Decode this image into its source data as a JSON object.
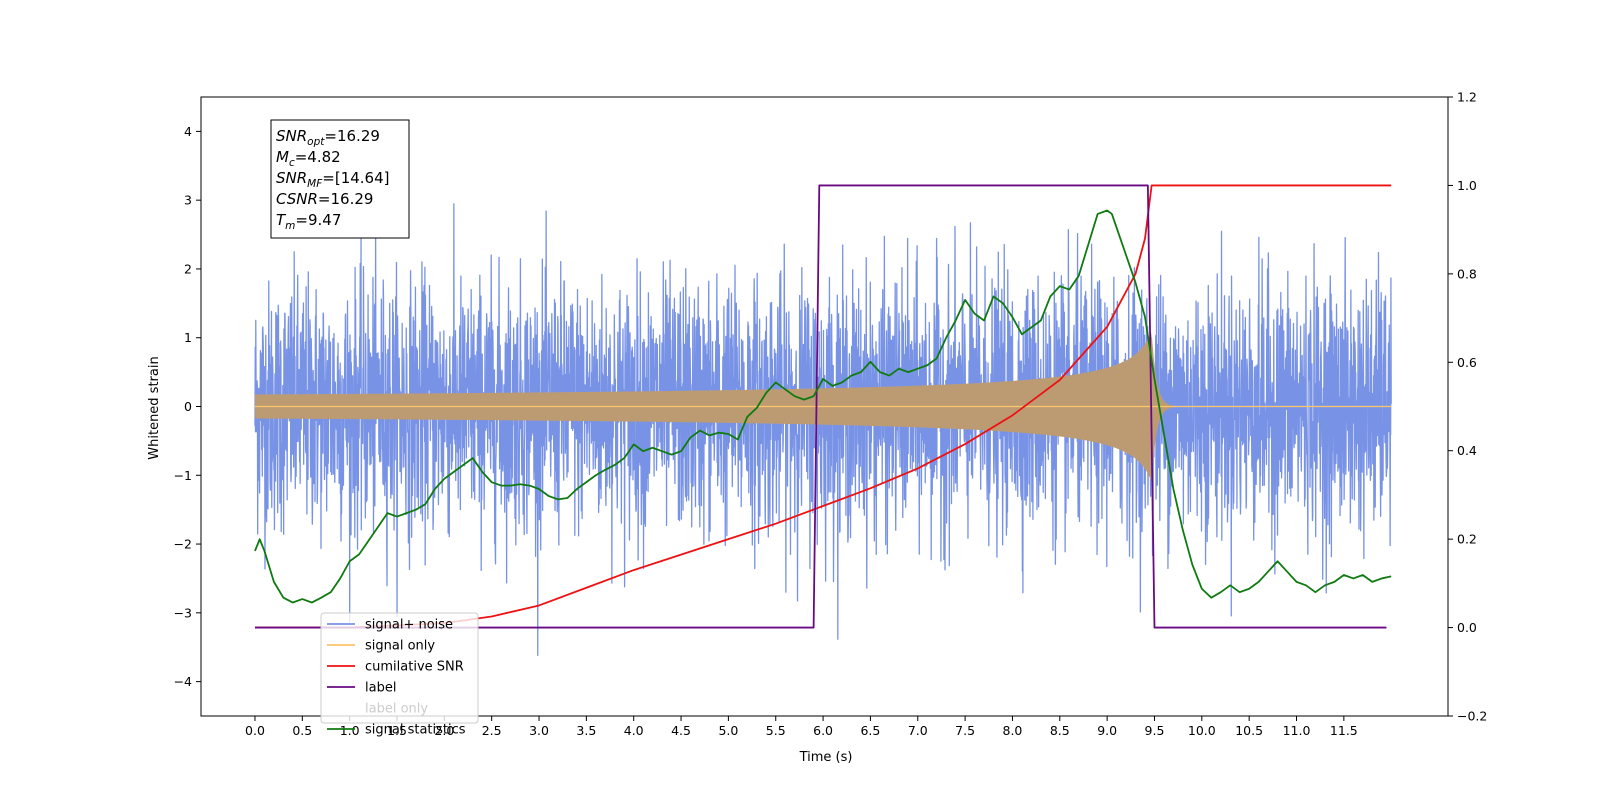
{
  "chart_data": {
    "type": "line",
    "title": "",
    "xlabel": "Time (s)",
    "ylabel": "Whitened strain",
    "y2label": "",
    "xlim": [
      -0.57,
      12.6
    ],
    "ylim": [
      -4.5,
      4.5
    ],
    "y2lim": [
      -0.2,
      1.2
    ],
    "xticks": [
      "0.0",
      "0.5",
      "1.0",
      "1.5",
      "2.0",
      "2.5",
      "3.0",
      "3.5",
      "4.0",
      "4.5",
      "5.0",
      "5.5",
      "6.0",
      "6.5",
      "7.0",
      "7.5",
      "8.0",
      "8.5",
      "9.0",
      "9.5",
      "10.0",
      "10.5",
      "11.0",
      "11.5"
    ],
    "yticks": [
      "4",
      "3",
      "2",
      "1",
      "0",
      "−1",
      "−2",
      "−3",
      "−4"
    ],
    "y2ticks": [
      "1.2",
      "1.0",
      "0.8",
      "0.6",
      "0.4",
      "0.2",
      "0.0",
      "−0.2"
    ],
    "grid": false,
    "legend_position": "bottom-left",
    "annotation": {
      "lines": [
        {
          "base": "SNR",
          "sub": "opt",
          "value": "=16.29"
        },
        {
          "base": "M",
          "sub": "c",
          "value": "=4.82"
        },
        {
          "base": "SNR",
          "sub": "MF",
          "value": "=[14.64]"
        },
        {
          "base": "CSNR",
          "sub": "",
          "value": "=16.29"
        },
        {
          "base": "T",
          "sub": "m",
          "value": "=9.47"
        }
      ]
    },
    "series": [
      {
        "name": "signal+ noise",
        "color": "#7893e6",
        "axis": "left",
        "kind": "noise",
        "x_start": 0.0,
        "x_end": 12.0,
        "std": 0.9,
        "peak_max": 4.12,
        "peak_min": -4.07
      },
      {
        "name": "signal only",
        "color": "#ffc56b",
        "axis": "left",
        "kind": "chirp",
        "x_start": 0.0,
        "x_end": 12.0,
        "merger_time": 9.47,
        "peak_amplitude": 1.1,
        "fill_color": "#bd9b72"
      },
      {
        "name": "cumilative SNR",
        "color": "#ee1111",
        "axis": "right",
        "x": [
          0.0,
          1.0,
          2.0,
          2.5,
          3.0,
          3.5,
          4.0,
          4.5,
          5.0,
          5.5,
          6.0,
          6.5,
          7.0,
          7.5,
          8.0,
          8.5,
          9.0,
          9.3,
          9.4,
          9.47,
          9.5,
          12.0
        ],
        "y": [
          0.0,
          0.0,
          0.01,
          0.025,
          0.05,
          0.09,
          0.13,
          0.165,
          0.2,
          0.235,
          0.275,
          0.315,
          0.36,
          0.415,
          0.48,
          0.56,
          0.68,
          0.8,
          0.88,
          1.0,
          1.0,
          1.0
        ]
      },
      {
        "name": "label",
        "color": "#6a0a82",
        "axis": "right",
        "x": [
          0.0,
          5.9,
          5.96,
          9.43,
          9.5,
          11.95
        ],
        "y": [
          0.0,
          0.0,
          1.0,
          1.0,
          0.0,
          0.0
        ]
      },
      {
        "name": "label only",
        "color": "#ffffff",
        "axis": "right",
        "hidden": true,
        "x": [],
        "y": []
      },
      {
        "name": "signal statistics",
        "color": "#107a10",
        "axis": "left",
        "x": [
          0.0,
          0.05,
          0.1,
          0.2,
          0.3,
          0.4,
          0.5,
          0.6,
          0.7,
          0.8,
          0.9,
          1.0,
          1.1,
          1.2,
          1.3,
          1.4,
          1.5,
          1.6,
          1.7,
          1.8,
          1.9,
          2.0,
          2.1,
          2.2,
          2.3,
          2.4,
          2.5,
          2.6,
          2.7,
          2.8,
          2.9,
          3.0,
          3.1,
          3.2,
          3.3,
          3.4,
          3.5,
          3.6,
          3.7,
          3.8,
          3.9,
          4.0,
          4.1,
          4.2,
          4.3,
          4.4,
          4.5,
          4.6,
          4.7,
          4.8,
          4.9,
          5.0,
          5.1,
          5.2,
          5.3,
          5.4,
          5.5,
          5.6,
          5.7,
          5.8,
          5.9,
          6.0,
          6.1,
          6.2,
          6.3,
          6.4,
          6.5,
          6.6,
          6.7,
          6.8,
          6.9,
          7.0,
          7.1,
          7.2,
          7.3,
          7.4,
          7.5,
          7.6,
          7.7,
          7.8,
          7.9,
          8.0,
          8.1,
          8.2,
          8.3,
          8.4,
          8.5,
          8.6,
          8.7,
          8.8,
          8.9,
          9.0,
          9.05,
          9.1,
          9.2,
          9.3,
          9.4,
          9.5,
          9.6,
          9.7,
          9.8,
          9.9,
          10.0,
          10.1,
          10.2,
          10.3,
          10.4,
          10.5,
          10.6,
          10.7,
          10.8,
          10.9,
          11.0,
          11.1,
          11.2,
          11.3,
          11.4,
          11.5,
          11.6,
          11.7,
          11.8,
          11.9,
          12.0
        ],
        "y": [
          -2.1,
          -1.93,
          -2.1,
          -2.55,
          -2.78,
          -2.85,
          -2.8,
          -2.85,
          -2.78,
          -2.7,
          -2.5,
          -2.25,
          -2.15,
          -1.95,
          -1.75,
          -1.55,
          -1.6,
          -1.55,
          -1.5,
          -1.42,
          -1.2,
          -1.05,
          -0.95,
          -0.85,
          -0.75,
          -0.95,
          -1.1,
          -1.15,
          -1.15,
          -1.13,
          -1.15,
          -1.2,
          -1.3,
          -1.35,
          -1.33,
          -1.2,
          -1.1,
          -1.0,
          -0.92,
          -0.85,
          -0.75,
          -0.55,
          -0.65,
          -0.6,
          -0.65,
          -0.7,
          -0.65,
          -0.45,
          -0.35,
          -0.42,
          -0.38,
          -0.4,
          -0.48,
          -0.15,
          -0.02,
          0.2,
          0.35,
          0.25,
          0.15,
          0.1,
          0.15,
          0.4,
          0.3,
          0.35,
          0.45,
          0.5,
          0.65,
          0.5,
          0.45,
          0.55,
          0.5,
          0.55,
          0.6,
          0.7,
          1.0,
          1.25,
          1.55,
          1.35,
          1.25,
          1.6,
          1.5,
          1.3,
          1.05,
          1.15,
          1.25,
          1.6,
          1.75,
          1.7,
          1.9,
          2.35,
          2.8,
          2.85,
          2.8,
          2.6,
          2.2,
          1.8,
          1.3,
          0.4,
          -0.4,
          -1.2,
          -1.8,
          -2.3,
          -2.65,
          -2.78,
          -2.7,
          -2.6,
          -2.7,
          -2.65,
          -2.55,
          -2.4,
          -2.25,
          -2.4,
          -2.55,
          -2.6,
          -2.7,
          -2.6,
          -2.55,
          -2.45,
          -2.5,
          -2.45,
          -2.55,
          -2.5,
          -2.47
        ]
      }
    ]
  }
}
